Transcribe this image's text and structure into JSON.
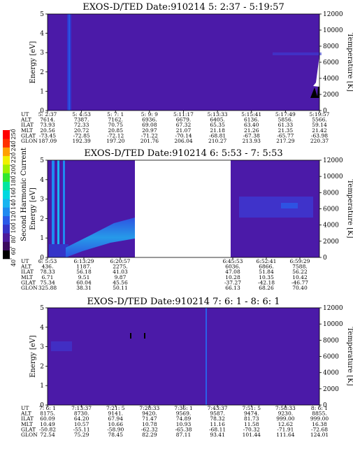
{
  "colorbar": {
    "label": "Second Harmonic Current",
    "ticks": [
      "40",
      "60",
      "80",
      "100",
      "120",
      "140",
      "160",
      "180",
      "200",
      "220",
      "240",
      "250"
    ],
    "colors": [
      "#000000",
      "#3a0a5e",
      "#4b1a9a",
      "#3434c8",
      "#2a5ae8",
      "#1f8af0",
      "#18b4f0",
      "#00d8e0",
      "#00e6a0",
      "#30e830",
      "#a0f000",
      "#f0f000",
      "#ffa000",
      "#ff3000",
      "#ff0000"
    ]
  },
  "chart_data": [
    {
      "type": "heatmap",
      "title": "EXOS-D/TED   Date:910214   5: 2:37 - 5:19:57",
      "ylabel": "Energy [eV]",
      "ylabel_right": "Temperature [K]",
      "ylim": [
        0,
        5
      ],
      "ylim_right": [
        0,
        12000
      ],
      "y_ticks": [
        "0",
        "1",
        "2",
        "3",
        "4",
        "5"
      ],
      "y_right_ticks": [
        "0",
        "2000",
        "4000",
        "6000",
        "8000",
        "10000",
        "12000"
      ],
      "rows": [
        {
          "name": "UT",
          "values": [
            "5: 2:37",
            "5: 4:53",
            "5: 7: 1",
            "5: 9: 9",
            "5:11:17",
            "5:13:33",
            "5:15:41",
            "5:17:49",
            "5:19:57"
          ]
        },
        {
          "name": "ALT",
          "values": [
            "7614.",
            "7387.",
            "7162.",
            "6936.",
            "6679.",
            "6405.",
            "6136.",
            "5856.",
            "5566."
          ]
        },
        {
          "name": "ILAT",
          "values": [
            "73.93",
            "72.33",
            "70.75",
            "69.08",
            "67.32",
            "65.35",
            "63.40",
            "61.33",
            "59.14"
          ]
        },
        {
          "name": "MLT",
          "values": [
            "20.56",
            "20.72",
            "20.85",
            "20.97",
            "21.07",
            "21.18",
            "21.26",
            "21.35",
            "21.42"
          ]
        },
        {
          "name": "GLAT",
          "values": [
            "-73.45",
            "-72.85",
            "-72.12",
            "-71.22",
            "-70.14",
            "-68.81",
            "-67.38",
            "-65.77",
            "-63.98"
          ]
        },
        {
          "name": "GLON",
          "values": [
            "187.09",
            "192.39",
            "197.20",
            "201.76",
            "206.04",
            "210.27",
            "213.93",
            "217.29",
            "220.37"
          ]
        }
      ]
    },
    {
      "type": "heatmap",
      "title": "EXOS-D/TED   Date:910214   6: 5:53 - 7: 5:53",
      "ylabel": "Energy [eV]",
      "ylabel_right": "Temperature [K]",
      "ylim": [
        0,
        5
      ],
      "ylim_right": [
        0,
        12000
      ],
      "y_ticks": [
        "0",
        "1",
        "2",
        "3",
        "4",
        "5"
      ],
      "y_right_ticks": [
        "0",
        "2000",
        "4000",
        "6000",
        "8000",
        "10000",
        "12000"
      ],
      "rows": [
        {
          "name": "UT",
          "values": [
            "6: 5:53",
            "6:13:29",
            "6:20:57",
            "6:45:53",
            "6:52:41",
            "6:59:29"
          ]
        },
        {
          "name": "ALT",
          "values": [
            "436.",
            "1187.",
            "2275.",
            "6036.",
            "6866.",
            "7588."
          ]
        },
        {
          "name": "ILAT",
          "values": [
            "78.33",
            "56.18",
            "41.03",
            "47.08",
            "51.84",
            "56.22"
          ]
        },
        {
          "name": "MLT",
          "values": [
            "6.71",
            "9.51",
            "9.87",
            "10.28",
            "10.35",
            "10.42"
          ]
        },
        {
          "name": "GLAT",
          "values": [
            "75.34",
            "60.04",
            "45.56",
            "-37.27",
            "-42.18",
            "-46.77"
          ]
        },
        {
          "name": "GLON",
          "values": [
            "325.88",
            "38.31",
            "50.11",
            "66.13",
            "68.26",
            "70.40"
          ]
        }
      ]
    },
    {
      "type": "heatmap",
      "title": "EXOS-D/TED   Date:910214   7: 6: 1 - 8: 6: 1",
      "ylabel": "Energy [eV]",
      "ylabel_right": "Temperature [K]",
      "ylim": [
        0,
        5
      ],
      "ylim_right": [
        0,
        12000
      ],
      "y_ticks": [
        "0",
        "1",
        "2",
        "3",
        "4",
        "5"
      ],
      "y_right_ticks": [
        "0",
        "2000",
        "4000",
        "6000",
        "8000",
        "10000",
        "12000"
      ],
      "rows": [
        {
          "name": "UT",
          "values": [
            "7: 6: 1",
            "7:13:37",
            "7:21: 5",
            "7:28:33",
            "7:36: 1",
            "7:43:37",
            "7:51: 5",
            "7:58:33",
            "8: 6: 1"
          ]
        },
        {
          "name": "ALT",
          "values": [
            "8175.",
            "8730.",
            "9141.",
            "9420.",
            "9569.",
            "9587.",
            "9474.",
            "9230.",
            "8855."
          ]
        },
        {
          "name": "ILAT",
          "values": [
            "60.09",
            "64.20",
            "67.94",
            "71.47",
            "74.89",
            "78.32",
            "81.73",
            "999.00",
            "999.00"
          ]
        },
        {
          "name": "MLT",
          "values": [
            "10.49",
            "10.57",
            "10.66",
            "10.78",
            "10.93",
            "11.16",
            "11.58",
            "12.62",
            "16.38"
          ]
        },
        {
          "name": "GLAT",
          "values": [
            "-50.82",
            "-55.11",
            "-58.90",
            "-62.32",
            "-65.38",
            "-68.11",
            "-70.32",
            "-71.91",
            "-72.68"
          ]
        },
        {
          "name": "GLON",
          "values": [
            "72.54",
            "75.29",
            "78.45",
            "82.29",
            "87.11",
            "93.41",
            "101.44",
            "111.64",
            "124.01"
          ]
        }
      ]
    }
  ]
}
